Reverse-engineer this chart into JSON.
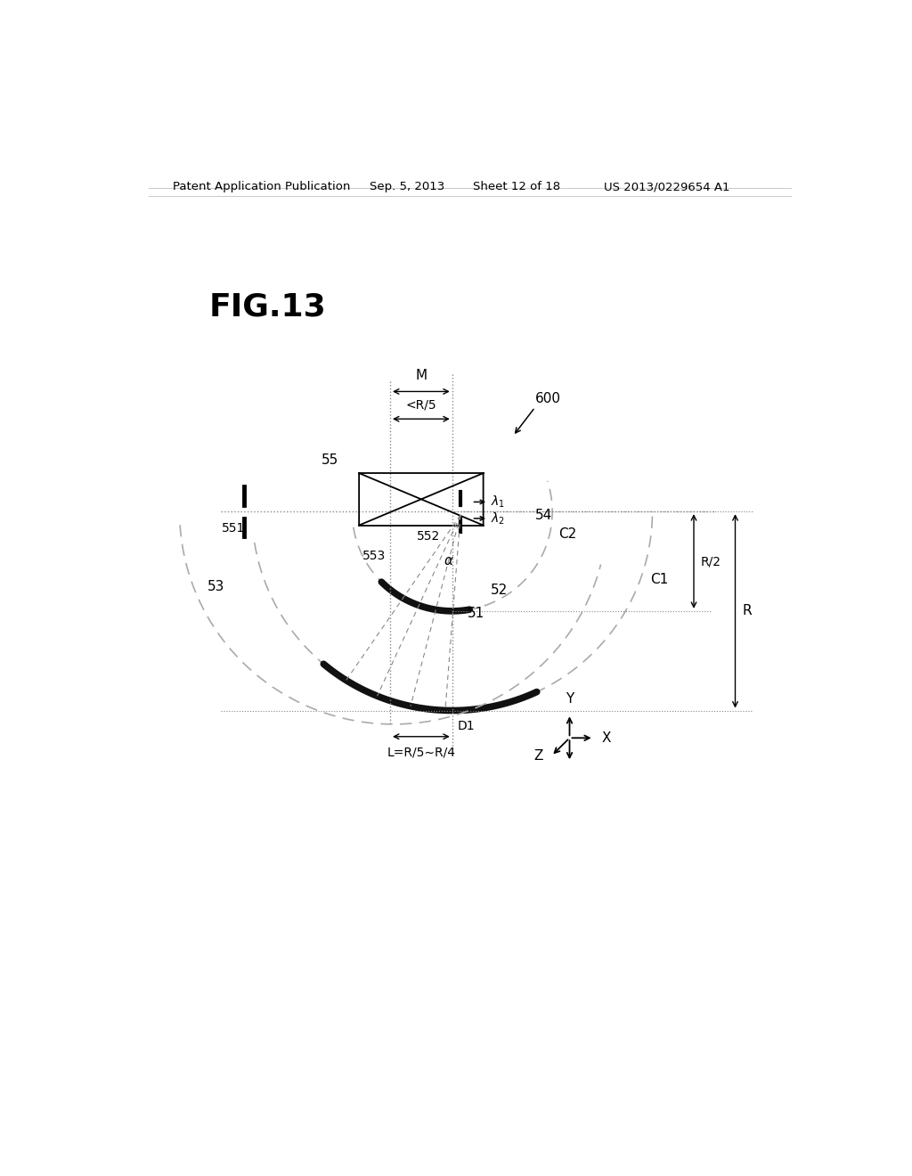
{
  "fig_label": "FIG.13",
  "patent_header": "Patent Application Publication",
  "patent_date": "Sep. 5, 2013",
  "patent_sheet": "Sheet 12 of 18",
  "patent_number": "US 2013/0229654 A1",
  "bg_color": "#ffffff",
  "line_color": "#000000",
  "gray_color": "#888888",
  "thick_color": "#111111"
}
